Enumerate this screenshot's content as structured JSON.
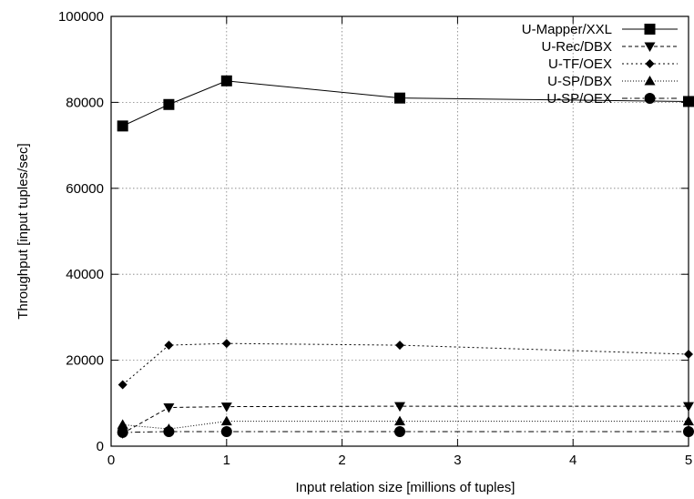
{
  "chart_data": {
    "type": "line",
    "xlabel": "Input relation size [millions of tuples]",
    "ylabel": "Throughput [input tuples/sec]",
    "xlim": [
      0,
      5
    ],
    "ylim": [
      0,
      100000
    ],
    "xticks": [
      0,
      1,
      2,
      3,
      4,
      5
    ],
    "yticks": [
      0,
      20000,
      40000,
      60000,
      80000,
      100000
    ],
    "grid": true,
    "legend_position": "top-right",
    "x": [
      0.1,
      0.5,
      1,
      2.5,
      5
    ],
    "series": [
      {
        "name": "U-Mapper/XXL",
        "marker": "square",
        "dash": "solid",
        "values": [
          74500,
          79500,
          85000,
          81000,
          80200
        ]
      },
      {
        "name": "U-Rec/DBX",
        "marker": "triangle-down",
        "dash": "dashed",
        "values": [
          3000,
          9000,
          9200,
          9300,
          9300
        ]
      },
      {
        "name": "U-TF/OEX",
        "marker": "diamond",
        "dash": "dotted",
        "values": [
          14300,
          23500,
          23900,
          23500,
          21400
        ]
      },
      {
        "name": "U-SP/DBX",
        "marker": "triangle-up",
        "dash": "fine-dot",
        "values": [
          5000,
          4000,
          5800,
          5800,
          5800
        ]
      },
      {
        "name": "U-SP/OEX",
        "marker": "circle",
        "dash": "dash-dot",
        "values": [
          3200,
          3400,
          3400,
          3400,
          3400
        ]
      }
    ]
  }
}
